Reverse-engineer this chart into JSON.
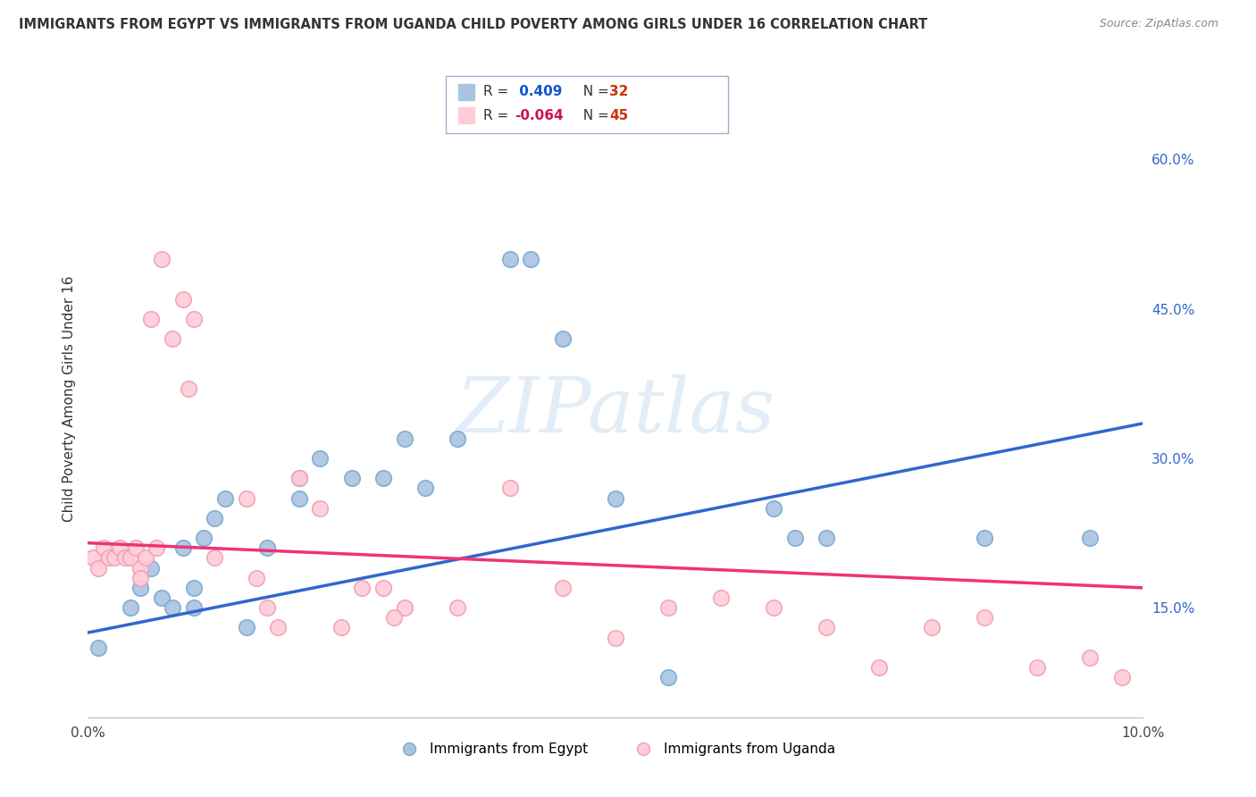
{
  "title": "IMMIGRANTS FROM EGYPT VS IMMIGRANTS FROM UGANDA CHILD POVERTY AMONG GIRLS UNDER 16 CORRELATION CHART",
  "source": "Source: ZipAtlas.com",
  "ylabel": "Child Poverty Among Girls Under 16",
  "xmin": 0.0,
  "xmax": 10.0,
  "ymin": 4.0,
  "ymax": 68.0,
  "yticks": [
    15.0,
    30.0,
    45.0,
    60.0
  ],
  "ytick_labels": [
    "15.0%",
    "30.0%",
    "45.0%",
    "60.0%"
  ],
  "grid_color": "#d0d0d0",
  "background_color": "#ffffff",
  "egypt_color": "#aac4e0",
  "egypt_edge_color": "#7aaad0",
  "uganda_color": "#ffccd8",
  "uganda_edge_color": "#f0a0b8",
  "egypt_R": 0.409,
  "egypt_N": 32,
  "uganda_R": -0.064,
  "uganda_N": 45,
  "egypt_line_color": "#3366cc",
  "uganda_line_color": "#ee3377",
  "watermark": "ZIPatlas",
  "egypt_scatter_x": [
    0.1,
    0.4,
    0.5,
    0.6,
    0.7,
    0.8,
    0.9,
    1.0,
    1.0,
    1.1,
    1.2,
    1.3,
    1.5,
    1.7,
    2.0,
    2.0,
    2.2,
    2.5,
    2.8,
    3.0,
    3.2,
    3.5,
    4.0,
    4.2,
    4.5,
    5.0,
    5.5,
    6.5,
    6.7,
    7.0,
    8.5,
    9.5
  ],
  "egypt_scatter_y": [
    11,
    15,
    17,
    19,
    16,
    15,
    21,
    17,
    15,
    22,
    24,
    26,
    13,
    21,
    28,
    26,
    30,
    28,
    28,
    32,
    27,
    32,
    50,
    50,
    42,
    26,
    8,
    25,
    22,
    22,
    22,
    22
  ],
  "uganda_scatter_x": [
    0.05,
    0.1,
    0.15,
    0.2,
    0.25,
    0.3,
    0.35,
    0.4,
    0.45,
    0.5,
    0.5,
    0.55,
    0.6,
    0.65,
    0.7,
    0.8,
    0.9,
    0.95,
    1.0,
    1.2,
    1.5,
    1.6,
    1.7,
    1.8,
    2.0,
    2.2,
    2.4,
    2.6,
    2.8,
    3.0,
    3.5,
    4.0,
    4.5,
    5.0,
    5.5,
    6.0,
    6.5,
    7.0,
    7.5,
    8.0,
    8.5,
    9.0,
    9.5,
    9.8,
    2.9
  ],
  "uganda_scatter_y": [
    20,
    19,
    21,
    20,
    20,
    21,
    20,
    20,
    21,
    19,
    18,
    20,
    44,
    21,
    50,
    42,
    46,
    37,
    44,
    20,
    26,
    18,
    15,
    13,
    28,
    25,
    13,
    17,
    17,
    15,
    15,
    27,
    17,
    12,
    15,
    16,
    15,
    13,
    9,
    13,
    14,
    9,
    10,
    8,
    14
  ],
  "egypt_line_y0": 12.5,
  "egypt_line_y1": 33.5,
  "uganda_line_y0": 21.5,
  "uganda_line_y1": 17.0
}
